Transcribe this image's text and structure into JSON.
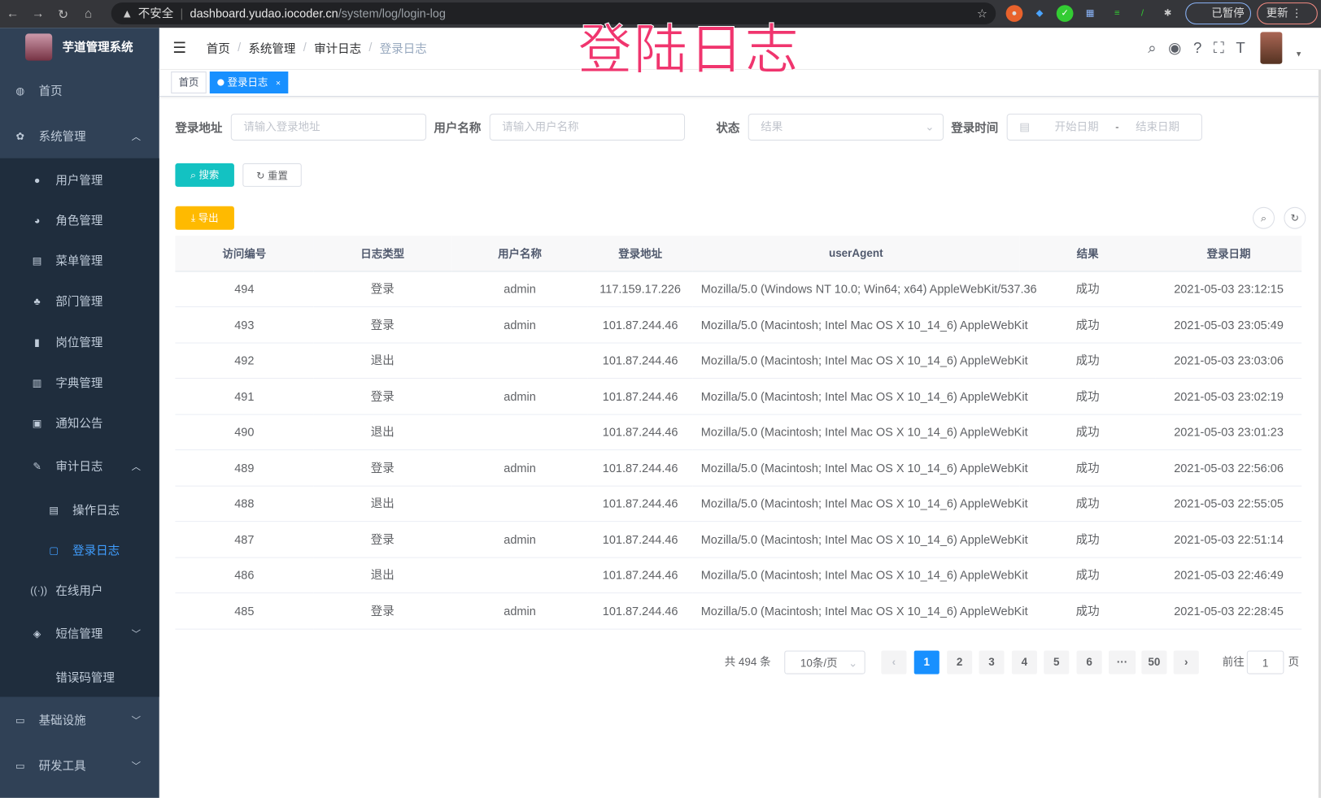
{
  "browser": {
    "insecure": "不安全",
    "host": "dashboard.yudao.iocoder.cn",
    "path": "/system/log/login-log",
    "paused": "已暂停",
    "update": "更新"
  },
  "overlay_title": "登陆日志",
  "sidebar": {
    "app_title": "芋道管理系统",
    "items": [
      {
        "label": "首页",
        "icon": "dashboard-icon"
      },
      {
        "label": "系统管理",
        "icon": "gear-icon"
      },
      {
        "label": "用户管理",
        "icon": "user-icon"
      },
      {
        "label": "角色管理",
        "icon": "peoples-icon"
      },
      {
        "label": "菜单管理",
        "icon": "tree-table-icon"
      },
      {
        "label": "部门管理",
        "icon": "tree-icon"
      },
      {
        "label": "岗位管理",
        "icon": "post-icon"
      },
      {
        "label": "字典管理",
        "icon": "dict-icon"
      },
      {
        "label": "通知公告",
        "icon": "message-icon"
      },
      {
        "label": "审计日志",
        "icon": "log-icon"
      },
      {
        "label": "操作日志",
        "icon": "form-icon"
      },
      {
        "label": "登录日志",
        "icon": "logininfor-icon"
      },
      {
        "label": "在线用户",
        "icon": "online-icon"
      },
      {
        "label": "短信管理",
        "icon": "validcode-icon"
      },
      {
        "label": "错误码管理",
        "icon": "code-icon"
      },
      {
        "label": "基础设施",
        "icon": "monitor-icon"
      },
      {
        "label": "研发工具",
        "icon": "tool-icon"
      }
    ]
  },
  "breadcrumb": [
    "首页",
    "系统管理",
    "审计日志",
    "登录日志"
  ],
  "tags": [
    "首页",
    "登录日志"
  ],
  "filters": {
    "login_address": {
      "label": "登录地址",
      "placeholder": "请输入登录地址"
    },
    "username": {
      "label": "用户名称",
      "placeholder": "请输入用户名称"
    },
    "status": {
      "label": "状态",
      "placeholder": "结果"
    },
    "login_time": {
      "label": "登录时间",
      "start": "开始日期",
      "sep": "-",
      "end": "结束日期"
    }
  },
  "buttons": {
    "search": "搜索",
    "reset": "重置",
    "export": "导出"
  },
  "table": {
    "columns": [
      "访问编号",
      "日志类型",
      "用户名称",
      "登录地址",
      "userAgent",
      "结果",
      "登录日期"
    ],
    "rows": [
      [
        "494",
        "登录",
        "admin",
        "117.159.17.226",
        "Mozilla/5.0 (Windows NT 10.0; Win64; x64) AppleWebKit/537.36",
        "成功",
        "2021-05-03 23:12:15"
      ],
      [
        "493",
        "登录",
        "admin",
        "101.87.244.46",
        "Mozilla/5.0 (Macintosh; Intel Mac OS X 10_14_6) AppleWebKit",
        "成功",
        "2021-05-03 23:05:49"
      ],
      [
        "492",
        "退出",
        "",
        "101.87.244.46",
        "Mozilla/5.0 (Macintosh; Intel Mac OS X 10_14_6) AppleWebKit",
        "成功",
        "2021-05-03 23:03:06"
      ],
      [
        "491",
        "登录",
        "admin",
        "101.87.244.46",
        "Mozilla/5.0 (Macintosh; Intel Mac OS X 10_14_6) AppleWebKit",
        "成功",
        "2021-05-03 23:02:19"
      ],
      [
        "490",
        "退出",
        "",
        "101.87.244.46",
        "Mozilla/5.0 (Macintosh; Intel Mac OS X 10_14_6) AppleWebKit",
        "成功",
        "2021-05-03 23:01:23"
      ],
      [
        "489",
        "登录",
        "admin",
        "101.87.244.46",
        "Mozilla/5.0 (Macintosh; Intel Mac OS X 10_14_6) AppleWebKit",
        "成功",
        "2021-05-03 22:56:06"
      ],
      [
        "488",
        "退出",
        "",
        "101.87.244.46",
        "Mozilla/5.0 (Macintosh; Intel Mac OS X 10_14_6) AppleWebKit",
        "成功",
        "2021-05-03 22:55:05"
      ],
      [
        "487",
        "登录",
        "admin",
        "101.87.244.46",
        "Mozilla/5.0 (Macintosh; Intel Mac OS X 10_14_6) AppleWebKit",
        "成功",
        "2021-05-03 22:51:14"
      ],
      [
        "486",
        "退出",
        "",
        "101.87.244.46",
        "Mozilla/5.0 (Macintosh; Intel Mac OS X 10_14_6) AppleWebKit",
        "成功",
        "2021-05-03 22:46:49"
      ],
      [
        "485",
        "登录",
        "admin",
        "101.87.244.46",
        "Mozilla/5.0 (Macintosh; Intel Mac OS X 10_14_6) AppleWebKit",
        "成功",
        "2021-05-03 22:28:45"
      ]
    ]
  },
  "pagination": {
    "total": "共 494 条",
    "page_size": "10条/页",
    "pages": [
      "1",
      "2",
      "3",
      "4",
      "5",
      "6",
      "···",
      "50"
    ],
    "current": "1",
    "goto_label": "前往",
    "goto_value": "1",
    "goto_suffix": "页"
  },
  "colors": {
    "sidebar": "#304156",
    "primary": "#1890ff",
    "search": "#13c2c2",
    "export": "#ffba00"
  }
}
